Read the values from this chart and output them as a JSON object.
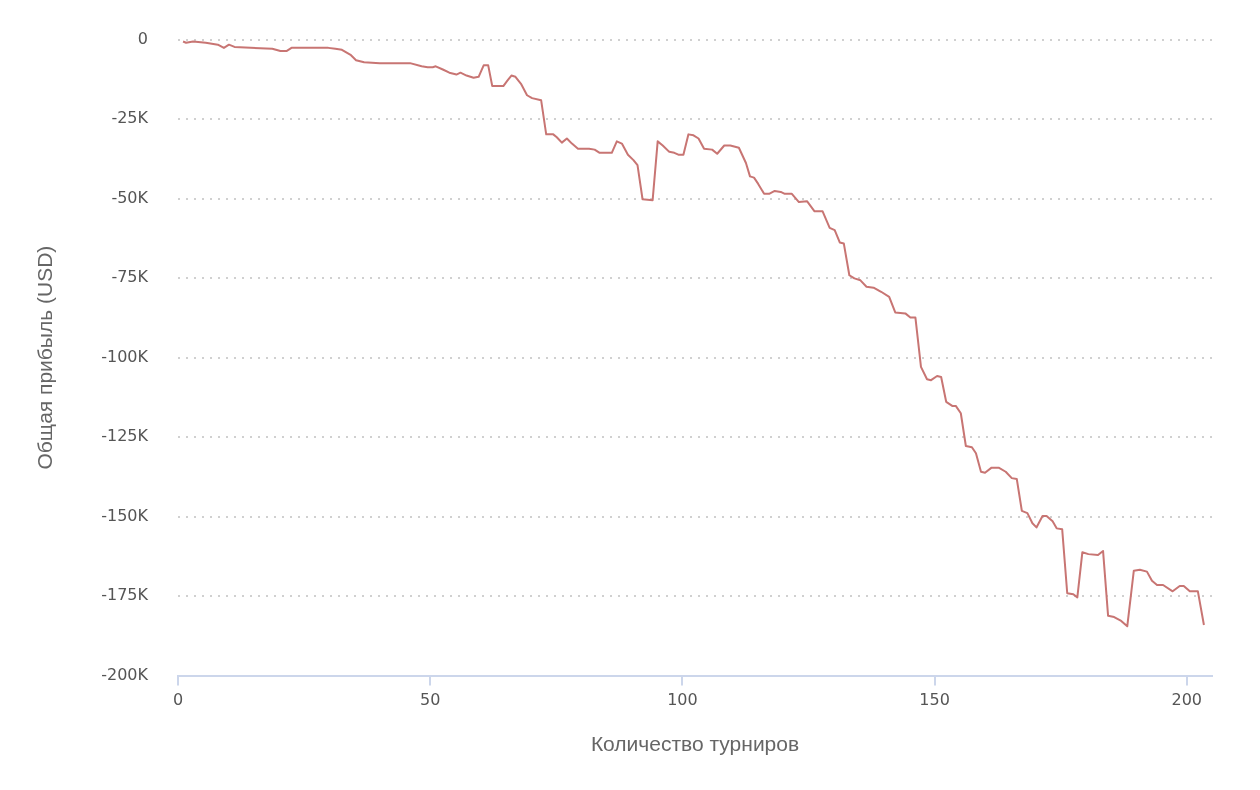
{
  "chart_data": {
    "type": "line",
    "xlabel": "Количество турниров",
    "ylabel": "Общая прибыль (USD)",
    "xlim": [
      0,
      205
    ],
    "xticks": [
      0,
      50,
      100,
      150,
      200
    ],
    "ylim": [
      -200000,
      0
    ],
    "yticks": [
      {
        "value": -200000,
        "label": "-200K"
      },
      {
        "value": -175000,
        "label": "-175K"
      },
      {
        "value": -150000,
        "label": "-150K"
      },
      {
        "value": -125000,
        "label": "-125K"
      },
      {
        "value": -100000,
        "label": "-100K"
      },
      {
        "value": -75000,
        "label": "-75K"
      },
      {
        "value": -50000,
        "label": "-50K"
      },
      {
        "value": -25000,
        "label": "-25K"
      },
      0
    ],
    "grid": "y",
    "marker": "none",
    "series": [
      {
        "color": "#c87573",
        "x": [
          1.0,
          1.6,
          3.0,
          5.5,
          7.9,
          9.1,
          10.1,
          11.2,
          18.7,
          20.3,
          21.5,
          22.5,
          29.8,
          31.2,
          32.5,
          34.3,
          35.3,
          36.9,
          40.0,
          46.0,
          48.3,
          49.5,
          50.5,
          51.1,
          52.5,
          53.8,
          55.2,
          56.0,
          57.2,
          58.6,
          59.6,
          60.6,
          61.5,
          62.3,
          64.5,
          65.3,
          66.1,
          66.9,
          68.0,
          69.2,
          70.2,
          72.0,
          73.0,
          74.4,
          75.1,
          76.1,
          77.1,
          78.1,
          79.3,
          81.5,
          82.6,
          83.6,
          86.0,
          87.0,
          88.0,
          89.2,
          90.3,
          91.1,
          92.1,
          94.1,
          95.1,
          96.1,
          97.4,
          98.4,
          99.2,
          100.2,
          101.2,
          102.2,
          103.2,
          104.3,
          105.9,
          106.9,
          108.3,
          109.5,
          111.2,
          112.6,
          113.4,
          114.2,
          115.0,
          116.2,
          117.2,
          118.3,
          119.5,
          120.3,
          121.7,
          123.1,
          124.7,
          126.2,
          127.8,
          129.2,
          130.2,
          131.2,
          132.0,
          133.1,
          134.1,
          135.3,
          136.5,
          137.9,
          139.4,
          141.0,
          142.2,
          144.2,
          145.2,
          146.2,
          147.3,
          148.5,
          149.3,
          150.5,
          151.3,
          152.3,
          153.5,
          154.2,
          155.2,
          156.2,
          157.4,
          158.2,
          159.2,
          160.0,
          161.3,
          162.7,
          164.1,
          165.3,
          166.3,
          167.3,
          168.4,
          169.4,
          170.2,
          171.4,
          172.2,
          173.4,
          174.2,
          175.3,
          176.3,
          177.5,
          178.3,
          179.3,
          180.5,
          182.4,
          183.4,
          184.4,
          185.6,
          187.0,
          188.2,
          189.5,
          190.7,
          192.1,
          193.1,
          194.1,
          195.3,
          197.2,
          198.6,
          199.4,
          200.6,
          202.2,
          203.4
        ],
        "values": [
          -600,
          -1000,
          -600,
          -1000,
          -1600,
          -2600,
          -1600,
          -2300,
          -2900,
          -3600,
          -3600,
          -2600,
          -2600,
          -2900,
          -3200,
          -4900,
          -6500,
          -7100,
          -7400,
          -7400,
          -8400,
          -8700,
          -8700,
          -8400,
          -9400,
          -10400,
          -11000,
          -10400,
          -11300,
          -12000,
          -11700,
          -8100,
          -8100,
          -14600,
          -14600,
          -12900,
          -11300,
          -11700,
          -13900,
          -17500,
          -18400,
          -19100,
          -29800,
          -29800,
          -30700,
          -32400,
          -31100,
          -32700,
          -34300,
          -34300,
          -34600,
          -35600,
          -35600,
          -32000,
          -32700,
          -36200,
          -37900,
          -39500,
          -50200,
          -50500,
          -32000,
          -33300,
          -35300,
          -35600,
          -36200,
          -36200,
          -29800,
          -30100,
          -31100,
          -34300,
          -34600,
          -35900,
          -33300,
          -33300,
          -34000,
          -38800,
          -43000,
          -43400,
          -45300,
          -48500,
          -48500,
          -47600,
          -47900,
          -48500,
          -48500,
          -51100,
          -50800,
          -54000,
          -54000,
          -59200,
          -59900,
          -63800,
          -64100,
          -74100,
          -75100,
          -75700,
          -77700,
          -78000,
          -79300,
          -80900,
          -85800,
          -86100,
          -87400,
          -87400,
          -102900,
          -106800,
          -107100,
          -105800,
          -106100,
          -113900,
          -115200,
          -115200,
          -117500,
          -127800,
          -128200,
          -130100,
          -135900,
          -136200,
          -134600,
          -134600,
          -135900,
          -137900,
          -138200,
          -148200,
          -148900,
          -152100,
          -153400,
          -149800,
          -149800,
          -151500,
          -153700,
          -154000,
          -174100,
          -174400,
          -175400,
          -161200,
          -161800,
          -162100,
          -160800,
          -181200,
          -181600,
          -182800,
          -184500,
          -167000,
          -166700,
          -167300,
          -170200,
          -171500,
          -171500,
          -173500,
          -171800,
          -171800,
          -173500,
          -173500,
          -184100
        ]
      }
    ]
  }
}
